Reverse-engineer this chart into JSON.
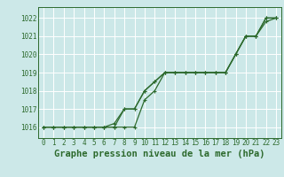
{
  "title": "Graphe pression niveau de la mer (hPa)",
  "background_color": "#cce8e8",
  "grid_color": "#ffffff",
  "line_color": "#2d6a2d",
  "x_ticks": [
    0,
    1,
    2,
    3,
    4,
    5,
    6,
    7,
    8,
    9,
    10,
    11,
    12,
    13,
    14,
    15,
    16,
    17,
    18,
    19,
    20,
    21,
    22,
    23
  ],
  "y_ticks": [
    1016,
    1017,
    1018,
    1019,
    1020,
    1021,
    1022
  ],
  "ylim": [
    1015.4,
    1022.6
  ],
  "xlim": [
    -0.5,
    23.5
  ],
  "series": [
    [
      1016.0,
      1016.0,
      1016.0,
      1016.0,
      1016.0,
      1016.0,
      1016.0,
      1016.0,
      1017.0,
      1017.0,
      1018.0,
      1018.5,
      1019.0,
      1019.0,
      1019.0,
      1019.0,
      1019.0,
      1019.0,
      1019.0,
      1020.0,
      1021.0,
      1021.0,
      1022.0,
      1022.0
    ],
    [
      1016.0,
      1016.0,
      1016.0,
      1016.0,
      1016.0,
      1016.0,
      1016.0,
      1016.0,
      1016.0,
      1016.0,
      1017.5,
      1018.0,
      1019.0,
      1019.0,
      1019.0,
      1019.0,
      1019.0,
      1019.0,
      1019.0,
      1020.0,
      1021.0,
      1021.0,
      1021.8,
      1022.0
    ],
    [
      1016.0,
      1016.0,
      1016.0,
      1016.0,
      1016.0,
      1016.0,
      1016.0,
      1016.2,
      1017.0,
      1017.0,
      1018.0,
      1018.5,
      1019.0,
      1019.0,
      1019.0,
      1019.0,
      1019.0,
      1019.0,
      1019.0,
      1020.0,
      1021.0,
      1021.0,
      1022.0,
      1022.0
    ]
  ],
  "marker": "+",
  "markersize": 3.5,
  "linewidth": 0.9,
  "title_fontsize": 7.5,
  "tick_fontsize": 5.5
}
